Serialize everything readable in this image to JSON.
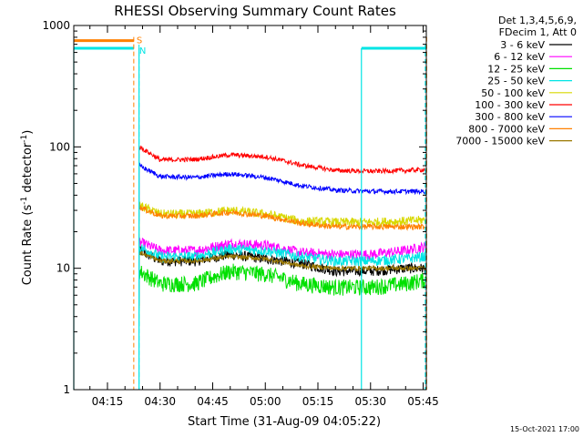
{
  "chart_data": {
    "type": "line",
    "title": "RHESSI Observing Summary Count Rates",
    "xlabel": "Start Time (31-Aug-09 04:05:22)",
    "ylabel_main": "Count Rate (s",
    "ylabel_sup1": "-1",
    "ylabel_mid": " detector",
    "ylabel_sup2": "-1",
    "ylabel_end": ")",
    "y_scale": "log",
    "ylim": [
      1,
      1000
    ],
    "xlim_minutes": [
      245.4,
      345.9
    ],
    "y_ticks": [
      {
        "value": 1,
        "label": "1"
      },
      {
        "value": 10,
        "label": "10"
      },
      {
        "value": 100,
        "label": "100"
      },
      {
        "value": 1000,
        "label": "1000"
      }
    ],
    "x_ticks": [
      {
        "minutes": 255,
        "label": "04:15"
      },
      {
        "minutes": 270,
        "label": "04:30"
      },
      {
        "minutes": 285,
        "label": "04:45"
      },
      {
        "minutes": 300,
        "label": "05:00"
      },
      {
        "minutes": 315,
        "label": "05:15"
      },
      {
        "minutes": 330,
        "label": "05:30"
      },
      {
        "minutes": 345,
        "label": "05:45"
      }
    ],
    "legend_header": [
      "Det 1,3,4,5,6,9,",
      "FDecim 1, Att 0"
    ],
    "legend_position": "right",
    "flags": {
      "saa_label": "S",
      "saa_color": "#ff8000",
      "night_label": "N",
      "night_color": "#00e5e5",
      "saa_level": 750,
      "night_level": 650,
      "saa_intervals": [
        [
          245.4,
          262.5
        ]
      ],
      "night_intervals": [
        [
          245.4,
          262.5
        ],
        [
          327.4,
          345.9
        ]
      ],
      "dashed_saa_minutes": [
        262.5,
        346.0
      ],
      "dashed_night_minutes": [
        264.0,
        345.6
      ],
      "solid_night_minutes": [
        245.4,
        264.0,
        327.4
      ]
    },
    "data_start_minutes": 264.0,
    "data_end_minutes": 345.8,
    "time_knots": [
      264,
      270,
      280,
      290,
      300,
      310,
      320,
      330,
      340,
      345
    ],
    "series": [
      {
        "name": "3 - 6 keV",
        "color": "#000000",
        "noise": 0.045,
        "values": [
          14,
          11.5,
          11.5,
          13,
          12,
          11,
          9.5,
          9.5,
          10,
          10
        ]
      },
      {
        "name": "6 - 12 keV",
        "color": "#ff00ff",
        "noise": 0.045,
        "values": [
          16.5,
          14,
          14,
          16,
          15.5,
          13.5,
          13,
          13,
          14,
          15
        ]
      },
      {
        "name": "12 - 25 keV",
        "color": "#00e000",
        "noise": 0.07,
        "values": [
          9.5,
          7.5,
          7.5,
          9.5,
          9,
          7.5,
          7,
          7,
          7.5,
          8
        ]
      },
      {
        "name": "25 - 50 keV",
        "color": "#00e5e5",
        "noise": 0.045,
        "values": [
          15,
          12.5,
          12.5,
          14.5,
          14,
          12.5,
          11.5,
          11.5,
          12,
          12.5
        ]
      },
      {
        "name": "50 - 100 keV",
        "color": "#d8d800",
        "noise": 0.04,
        "values": [
          33,
          28,
          28,
          30,
          28,
          24.5,
          24,
          24,
          24.5,
          25
        ]
      },
      {
        "name": "100 - 300 keV",
        "color": "#ff0000",
        "noise": 0.02,
        "values": [
          100,
          78,
          79,
          86,
          83,
          71,
          64,
          63,
          64,
          65
        ]
      },
      {
        "name": "300 - 800 keV",
        "color": "#0000ff",
        "noise": 0.02,
        "values": [
          70,
          57,
          56,
          60,
          56,
          48,
          44,
          43,
          43,
          43
        ]
      },
      {
        "name": "800 - 7000 keV",
        "color": "#ff8000",
        "noise": 0.025,
        "values": [
          32,
          27,
          27,
          29,
          27,
          23.5,
          22,
          22,
          22,
          22
        ]
      },
      {
        "name": "7000 - 15000 keV",
        "color": "#9a7800",
        "noise": 0.02,
        "values": [
          13.5,
          11.5,
          11.5,
          12.5,
          12,
          10.5,
          10,
          10,
          10,
          10
        ]
      }
    ]
  },
  "footer_timestamp": "15-Oct-2021 17:00"
}
